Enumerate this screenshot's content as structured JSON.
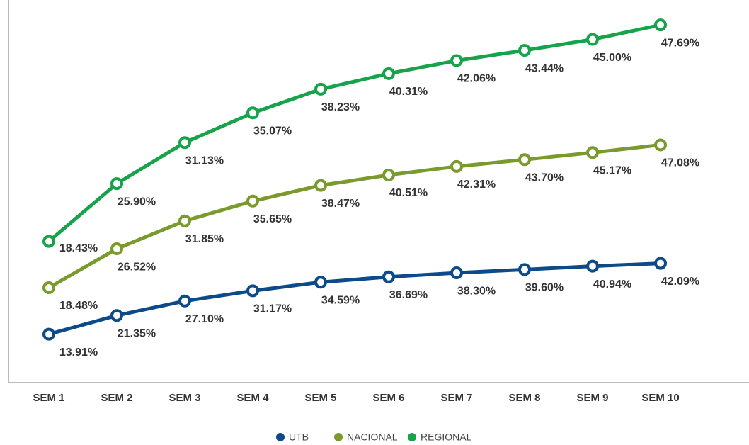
{
  "chart_data": {
    "type": "line",
    "stacked": true,
    "categories": [
      "SEM 1",
      "SEM 2",
      "SEM 3",
      "SEM 4",
      "SEM 5",
      "SEM 6",
      "SEM 7",
      "SEM 8",
      "SEM 9",
      "SEM 10"
    ],
    "ylim": [
      0,
      140
    ],
    "series": [
      {
        "name": "UTB",
        "color": "#0d4a8a",
        "values": [
          13.91,
          21.35,
          27.1,
          31.17,
          34.59,
          36.69,
          38.3,
          39.6,
          40.94,
          42.09
        ],
        "value_labels": [
          "13.91%",
          "21.35%",
          "27.10%",
          "31.17%",
          "34.59%",
          "36.69%",
          "38.30%",
          "39.60%",
          "40.94%",
          "42.09%"
        ]
      },
      {
        "name": "NACIONAL",
        "color": "#7a9a2e",
        "values": [
          18.48,
          26.52,
          31.85,
          35.65,
          38.47,
          40.51,
          42.31,
          43.7,
          45.17,
          47.08
        ],
        "value_labels": [
          "18.48%",
          "26.52%",
          "31.85%",
          "35.65%",
          "38.47%",
          "40.51%",
          "42.31%",
          "43.70%",
          "45.17%",
          "47.08%"
        ]
      },
      {
        "name": "REGIONAL",
        "color": "#17a34a",
        "values": [
          18.43,
          25.9,
          31.13,
          35.07,
          38.23,
          40.31,
          42.06,
          43.44,
          45.0,
          47.69
        ],
        "value_labels": [
          "18.43%",
          "25.90%",
          "31.13%",
          "35.07%",
          "38.23%",
          "40.31%",
          "42.06%",
          "43.44%",
          "45.00%",
          "47.69%"
        ]
      }
    ]
  }
}
